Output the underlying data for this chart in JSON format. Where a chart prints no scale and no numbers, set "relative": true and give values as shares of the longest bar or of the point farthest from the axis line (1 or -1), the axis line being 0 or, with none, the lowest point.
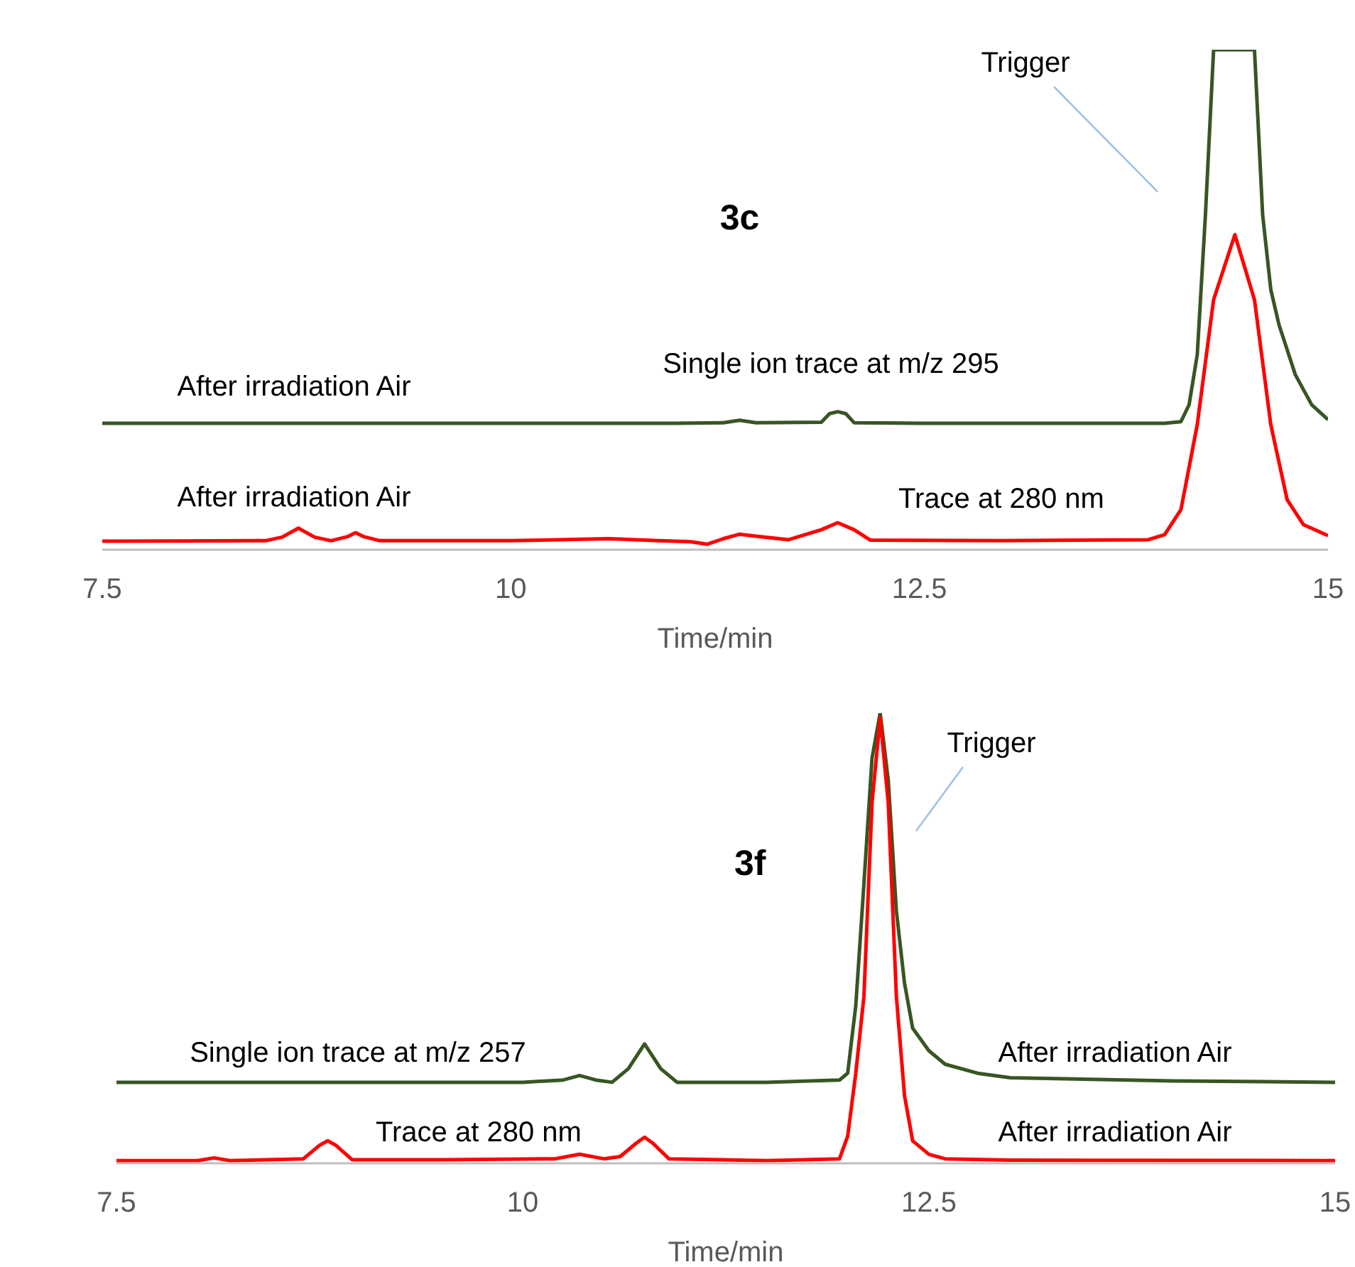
{
  "chart_data": [
    {
      "type": "line",
      "title": "3c",
      "xlabel": "Time/min",
      "relative": true,
      "xlim": [
        7.5,
        15
      ],
      "xticks": [
        7.5,
        10,
        12.5,
        15
      ],
      "tick_labels": "x",
      "marker": "none",
      "line_style": "solid",
      "series": [
        {
          "name": "Single ion trace at m/z 295",
          "color": "#375623",
          "x": [
            7.5,
            9,
            10,
            11,
            11.3,
            11.4,
            11.5,
            11.9,
            11.95,
            12.0,
            12.05,
            12.1,
            12.5,
            13,
            13.5,
            14.0,
            14.1,
            14.15,
            14.2,
            14.25,
            14.3,
            14.55,
            14.6,
            14.65,
            14.7,
            14.8,
            14.9,
            15
          ],
          "values": [
            0.253,
            0.253,
            0.253,
            0.253,
            0.254,
            0.259,
            0.254,
            0.255,
            0.272,
            0.276,
            0.272,
            0.254,
            0.253,
            0.253,
            0.253,
            0.253,
            0.256,
            0.29,
            0.39,
            0.67,
            1,
            1,
            0.67,
            0.52,
            0.45,
            0.35,
            0.29,
            0.26
          ]
        },
        {
          "name": "Trace at 280 nm",
          "color": "#ff0000",
          "x": [
            7.5,
            8.5,
            8.6,
            8.7,
            8.8,
            8.9,
            9.0,
            9.05,
            9.1,
            9.2,
            10,
            10.6,
            10.9,
            11.1,
            11.2,
            11.3,
            11.4,
            11.5,
            11.7,
            11.9,
            12.0,
            12.1,
            12.2,
            13,
            13.9,
            14.0,
            14.1,
            14.2,
            14.3,
            14.43,
            14.55,
            14.65,
            14.75,
            14.85,
            15
          ],
          "values": [
            0.017,
            0.018,
            0.025,
            0.043,
            0.025,
            0.018,
            0.026,
            0.034,
            0.026,
            0.018,
            0.018,
            0.022,
            0.018,
            0.016,
            0.011,
            0.022,
            0.031,
            0.027,
            0.02,
            0.04,
            0.054,
            0.04,
            0.019,
            0.018,
            0.02,
            0.03,
            0.08,
            0.25,
            0.5,
            0.63,
            0.5,
            0.25,
            0.1,
            0.05,
            0.028
          ]
        }
      ],
      "annotations": [
        "After irradiation Air",
        "After irradiation Air",
        "Trigger"
      ]
    },
    {
      "type": "line",
      "title": "3f",
      "xlabel": "Time/min",
      "relative": true,
      "xlim": [
        7.5,
        15
      ],
      "xticks": [
        7.5,
        10,
        12.5,
        15
      ],
      "tick_labels": "x",
      "marker": "none",
      "line_style": "solid",
      "series": [
        {
          "name": "Single ion trace at m/z 257",
          "color": "#375623",
          "x": [
            7.5,
            10,
            10.25,
            10.35,
            10.45,
            10.55,
            10.65,
            10.75,
            10.85,
            10.95,
            11.5,
            11.95,
            12.0,
            12.05,
            12.1,
            12.15,
            12.2,
            12.25,
            12.3,
            12.35,
            12.4,
            12.5,
            12.6,
            12.8,
            13,
            14,
            15
          ],
          "values": [
            0.18,
            0.18,
            0.185,
            0.195,
            0.185,
            0.18,
            0.21,
            0.265,
            0.21,
            0.18,
            0.18,
            0.185,
            0.2,
            0.35,
            0.62,
            0.9,
            1,
            0.85,
            0.56,
            0.4,
            0.3,
            0.25,
            0.22,
            0.2,
            0.19,
            0.183,
            0.18
          ]
        },
        {
          "name": "Trace at 280 nm",
          "color": "#ff0000",
          "x": [
            7.5,
            8.0,
            8.1,
            8.2,
            8.65,
            8.75,
            8.8,
            8.85,
            8.95,
            9.5,
            10.2,
            10.35,
            10.5,
            10.6,
            10.7,
            10.75,
            10.8,
            10.9,
            11.5,
            11.95,
            12.0,
            12.05,
            12.1,
            12.15,
            12.2,
            12.25,
            12.3,
            12.35,
            12.4,
            12.5,
            12.6,
            13,
            15
          ],
          "values": [
            0.006,
            0.006,
            0.012,
            0.006,
            0.01,
            0.04,
            0.05,
            0.04,
            0.008,
            0.008,
            0.01,
            0.02,
            0.01,
            0.015,
            0.045,
            0.058,
            0.045,
            0.01,
            0.006,
            0.01,
            0.06,
            0.2,
            0.37,
            0.8,
            0.99,
            0.8,
            0.37,
            0.15,
            0.05,
            0.02,
            0.01,
            0.007,
            0.006
          ]
        }
      ],
      "annotations": [
        "Trigger",
        "After irradiation Air",
        "After irradiation Air"
      ]
    }
  ]
}
